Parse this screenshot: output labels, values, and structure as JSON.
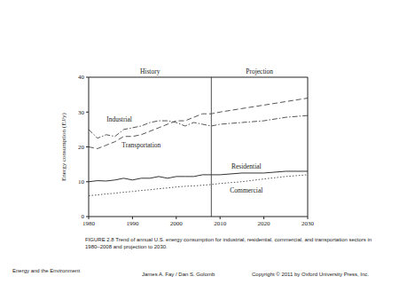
{
  "chart_data": {
    "type": "line",
    "ylabel": "Energy consumption (EJ/y)",
    "x": [
      1980,
      1982,
      1984,
      1986,
      1988,
      1990,
      1992,
      1994,
      1996,
      1998,
      2000,
      2002,
      2004,
      2006,
      2008,
      2010,
      2015,
      2020,
      2025,
      2030
    ],
    "series": [
      {
        "name": "Industrial",
        "color": "#555555",
        "line_style": "dashdot",
        "label_x": 1987,
        "label_y": 28,
        "values": [
          25,
          22.5,
          23.5,
          23,
          25,
          25.5,
          26,
          27,
          27.5,
          27.5,
          27,
          26,
          27,
          26.5,
          26,
          26.5,
          27,
          27.5,
          28.5,
          29
        ]
      },
      {
        "name": "Transportation",
        "color": "#555555",
        "line_style": "dashed",
        "label_x": 1992,
        "label_y": 20.5,
        "values": [
          20,
          19.5,
          20.5,
          21.5,
          23,
          23,
          23.5,
          24.5,
          25.5,
          26.5,
          27.5,
          27.5,
          28.5,
          29.5,
          29.5,
          30,
          31,
          32,
          33,
          34
        ]
      },
      {
        "name": "Residential",
        "color": "#333333",
        "line_style": "solid",
        "label_x": 2016,
        "label_y": 14.5,
        "values": [
          10,
          10.3,
          10.2,
          10.5,
          11,
          10.5,
          11,
          11,
          11.5,
          11,
          11.5,
          11.5,
          11.5,
          12,
          12,
          12,
          12.5,
          12.5,
          13,
          13
        ]
      },
      {
        "name": "Commercial",
        "color": "#555555",
        "line_style": "dotted",
        "label_x": 2016,
        "label_y": 7.5,
        "values": [
          6,
          6.2,
          6.5,
          6.7,
          7,
          7.2,
          7.5,
          7.7,
          8,
          8.2,
          8.5,
          8.7,
          8.8,
          9,
          9.2,
          9.5,
          10,
          10.8,
          11.5,
          12
        ]
      }
    ],
    "periods": [
      {
        "label": "History",
        "from": 1980,
        "to": 2008
      },
      {
        "label": "Projection",
        "from": 2008,
        "to": 2030
      }
    ],
    "xlim": [
      1980,
      2030
    ],
    "xticks": [
      1980,
      1990,
      2000,
      2010,
      2020,
      2030
    ],
    "ylim": [
      0,
      40
    ],
    "yticks": [
      0,
      10,
      20,
      30,
      40
    ],
    "grid": false
  },
  "caption": "FIGURE 2.8 Trend of annual U.S. energy consumption for industrial, residential, commercial, and transportation sectors in 1980–2008 and projection to 2030.",
  "footer": [
    "Energy and the Environment",
    "James A. Fay / Dan S. Golomb",
    "Copyright © 2011 by Oxford University Press, Inc."
  ]
}
